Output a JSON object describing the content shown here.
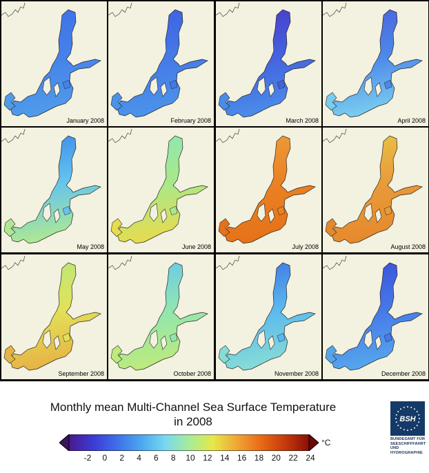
{
  "panels": [
    {
      "label": "January 2008",
      "colors": {
        "north": "#3f6fe8",
        "center": "#4582ea",
        "south": "#4f9bea"
      }
    },
    {
      "label": "February 2008",
      "colors": {
        "north": "#3e5ee0",
        "center": "#4479e8",
        "south": "#4b93ea"
      }
    },
    {
      "label": "March 2008",
      "colors": {
        "north": "#4a3bc8",
        "center": "#4462df",
        "south": "#4a8ce9"
      }
    },
    {
      "label": "April 2008",
      "colors": {
        "north": "#4a62dc",
        "center": "#4d88ea",
        "south": "#79ccef"
      }
    },
    {
      "label": "May 2008",
      "colors": {
        "north": "#3f88e8",
        "center": "#63c4ef",
        "south": "#aee893"
      }
    },
    {
      "label": "June 2008",
      "colors": {
        "north": "#8de6b8",
        "center": "#a8e88a",
        "south": "#e6dc4e"
      }
    },
    {
      "label": "July 2008",
      "colors": {
        "north": "#ef9e3a",
        "center": "#ea8224",
        "south": "#e67218"
      }
    },
    {
      "label": "August 2008",
      "colors": {
        "north": "#e9c548",
        "center": "#e99b3a",
        "south": "#e58a2c"
      }
    },
    {
      "label": "September 2008",
      "colors": {
        "north": "#b8e87a",
        "center": "#e2e25a",
        "south": "#e6b444"
      }
    },
    {
      "label": "October 2008",
      "colors": {
        "north": "#66c6ee",
        "center": "#8fe6b2",
        "south": "#bdea7c"
      }
    },
    {
      "label": "November 2008",
      "colors": {
        "north": "#3f73e6",
        "center": "#5ab8ee",
        "south": "#86dcd6"
      }
    },
    {
      "label": "December 2008",
      "colors": {
        "north": "#3a4fd8",
        "center": "#4678e8",
        "south": "#55a6ec"
      }
    }
  ],
  "title": {
    "line1": "Monthly mean Multi-Channel Sea Surface Temperature",
    "line2": "in 2008"
  },
  "colorbar": {
    "ticks": [
      "-2",
      "0",
      "2",
      "4",
      "6",
      "8",
      "10",
      "12",
      "14",
      "16",
      "18",
      "20",
      "22",
      "24"
    ],
    "unit": "°C",
    "colors": [
      "#4a1a8c",
      "#3b3bd6",
      "#3f6fe8",
      "#4aa6f0",
      "#78d8f0",
      "#a6ec9a",
      "#e6e848",
      "#f0a636",
      "#e86a16",
      "#c43a0c",
      "#8a1006"
    ]
  },
  "logo": {
    "mark": "BSH",
    "lines": [
      "BUNDESAMT FÜR",
      "SEESCHIFFFAHRT",
      "UND",
      "HYDROGRAPHIE"
    ]
  }
}
